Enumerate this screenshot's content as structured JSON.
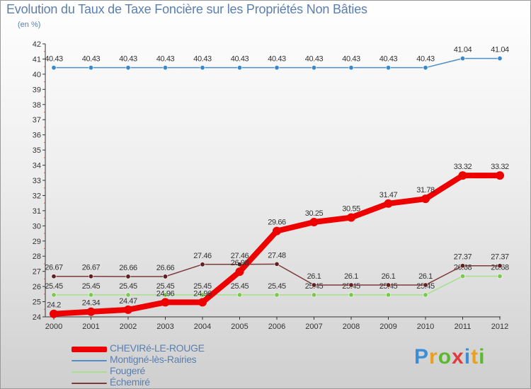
{
  "header": {
    "title": "Evolution du Taux de Taxe Foncière sur les Propriétés Non Bâties",
    "subtitle": "(en %)"
  },
  "brand": {
    "letters": [
      "P",
      "r",
      "o",
      "x",
      "i",
      "t",
      "i"
    ],
    "colors": [
      "#3a8dd6",
      "#e8a020",
      "#5cb82e",
      "#e03a3a",
      "#3a8dd6",
      "#e8a020",
      "#5cb82e"
    ]
  },
  "chart_data": {
    "type": "line",
    "title": "Evolution du Taux de Taxe Foncière sur les Propriétés Non Bâties",
    "ylabel": "(en %)",
    "xlabel": "",
    "categories": [
      "2000",
      "2001",
      "2002",
      "2003",
      "2004",
      "2005",
      "2006",
      "2007",
      "2008",
      "2009",
      "2010",
      "2011",
      "2012"
    ],
    "ylim": [
      24,
      42
    ],
    "yticks": [
      24,
      25,
      26,
      27,
      28,
      29,
      30,
      31,
      32,
      33,
      34,
      35,
      36,
      37,
      38,
      39,
      40,
      41,
      42
    ],
    "grid": false,
    "legend_position": "bottom-left",
    "series": [
      {
        "name": "Montigné-lès-Rairies",
        "color": "#4f8fc7",
        "marker": "#3a88cc",
        "values": [
          40.43,
          40.43,
          40.43,
          40.43,
          40.43,
          40.43,
          40.43,
          40.43,
          40.43,
          40.43,
          40.43,
          41.04,
          41.04
        ]
      },
      {
        "name": "Fougeré",
        "color": "#a6e08a",
        "marker": "#7ac94e",
        "values": [
          25.45,
          25.45,
          25.45,
          25.45,
          25.45,
          25.45,
          25.45,
          25.45,
          25.45,
          25.45,
          25.45,
          26.68,
          26.68
        ]
      },
      {
        "name": "Échemiré",
        "color": "#7d3a3a",
        "marker": "#5e2020",
        "values": [
          26.67,
          26.67,
          26.66,
          26.66,
          27.46,
          27.46,
          27.48,
          26.1,
          26.1,
          26.1,
          26.1,
          27.37,
          27.37
        ]
      },
      {
        "name": "CHEVIRé-LE-ROUGE",
        "color": "#ee0000",
        "marker": "#ee0000",
        "values": [
          24.2,
          24.34,
          24.47,
          24.96,
          24.96,
          26.98,
          29.66,
          30.25,
          30.55,
          31.47,
          31.78,
          33.32,
          33.32
        ]
      }
    ],
    "legend_order": [
      "CHEVIRé-LE-ROUGE",
      "Montigné-lès-Rairies",
      "Fougeré",
      "Échemiré"
    ]
  }
}
